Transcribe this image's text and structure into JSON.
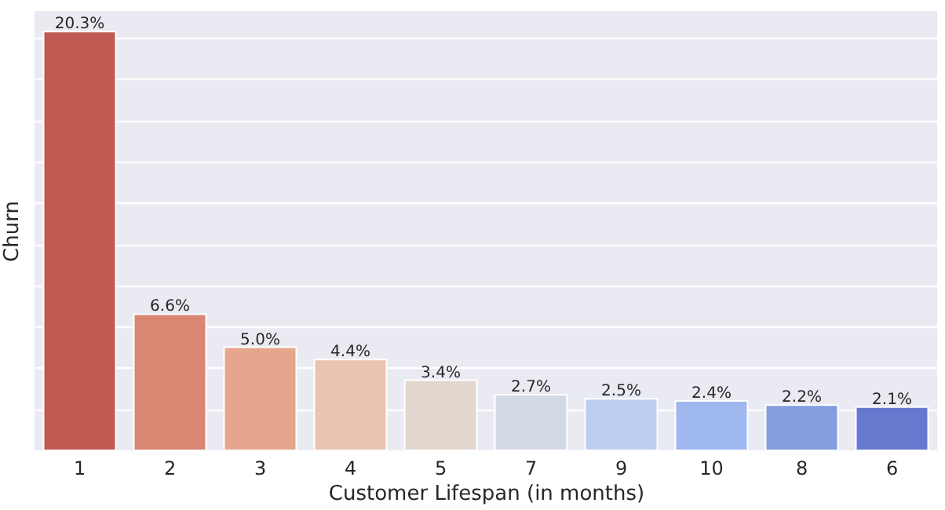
{
  "chart_data": {
    "type": "bar",
    "xlabel": "Customer Lifespan (in months)",
    "ylabel": "Churn",
    "categories": [
      "1",
      "2",
      "3",
      "4",
      "5",
      "7",
      "9",
      "10",
      "8",
      "6"
    ],
    "values": [
      20.3,
      6.6,
      5.0,
      4.4,
      3.4,
      2.7,
      2.5,
      2.4,
      2.2,
      2.1
    ],
    "value_labels": [
      "20.3%",
      "6.6%",
      "5.0%",
      "4.4%",
      "3.4%",
      "2.7%",
      "2.5%",
      "2.4%",
      "2.2%",
      "2.1%"
    ],
    "colors": [
      "#c05a50",
      "#d98672",
      "#e6a68e",
      "#eac3b1",
      "#e2d6cf",
      "#d3dae6",
      "#bccff0",
      "#9fb8ef",
      "#839fe0",
      "#6779cf"
    ],
    "ylim": [
      0,
      21.3
    ],
    "grid": "y",
    "tick_labels": "x"
  }
}
